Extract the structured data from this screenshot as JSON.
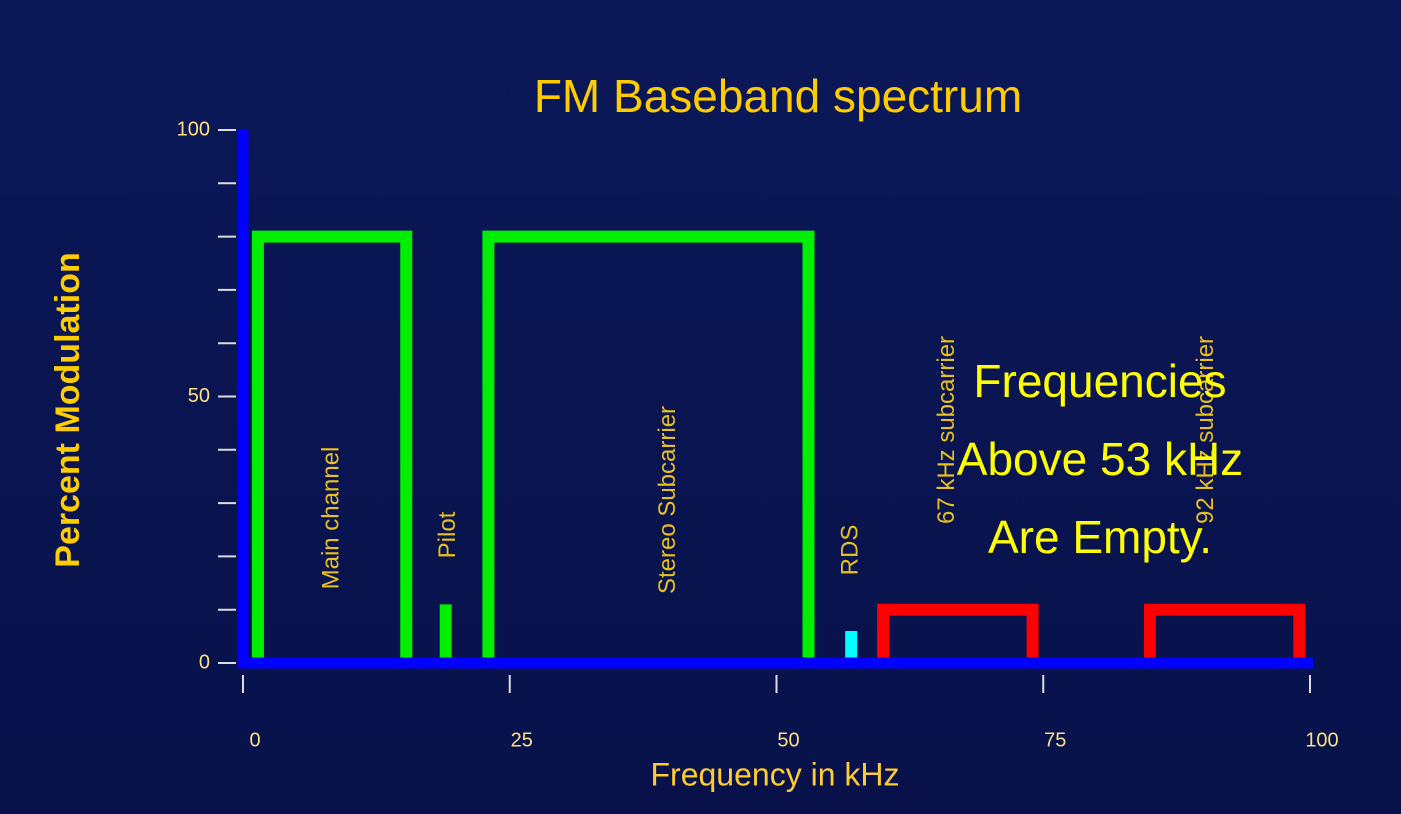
{
  "chart_data": {
    "type": "spectrum",
    "title": "FM Baseband spectrum",
    "x_label": "Frequency in kHz",
    "y_label": "Percent Modulation",
    "xlim": [
      0,
      100
    ],
    "ylim": [
      0,
      100
    ],
    "xticks": [
      0,
      25,
      50,
      75,
      100
    ],
    "yticks": [
      0,
      50,
      100
    ],
    "yticks_minor": [
      10,
      20,
      30,
      40,
      60,
      70,
      80,
      90
    ],
    "bands": [
      {
        "label": "Main channel",
        "style": "outline",
        "start": 1.4,
        "end": 15.3,
        "value": 80,
        "color": "#00ee00"
      },
      {
        "label": "Pilot",
        "style": "spike",
        "freq": 19,
        "value": 11,
        "color": "#00ee00"
      },
      {
        "label": "Stereo Subcarrier",
        "style": "outline",
        "start": 23,
        "end": 53,
        "value": 80,
        "color": "#00ee00"
      },
      {
        "label": "RDS",
        "style": "spike",
        "freq": 57,
        "value": 6,
        "color": "#00ffff"
      },
      {
        "label": "67 kHz subcarrier",
        "style": "outline",
        "start": 60,
        "end": 74,
        "value": 10,
        "color": "#ff0000"
      },
      {
        "label": "92 kHz subcarrier",
        "style": "outline",
        "start": 85,
        "end": 99,
        "value": 10,
        "color": "#ff0000"
      }
    ],
    "annotation": [
      "Frequencies",
      "Above 53 kHz",
      "Are Empty."
    ]
  }
}
